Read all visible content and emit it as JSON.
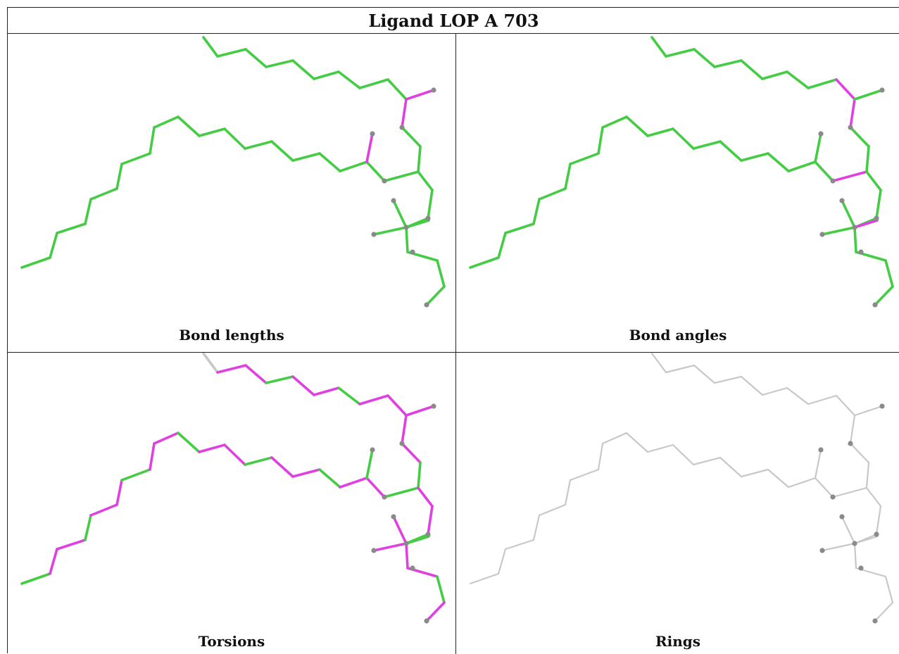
{
  "title": "Ligand LOP A 703",
  "colors": {
    "good": "#44cc44",
    "outlier": "#e040e0",
    "neutral": "#c8c8c8",
    "atom": "#8a8a8a"
  },
  "panels": [
    {
      "caption": "Bond lengths",
      "mode": "bonds"
    },
    {
      "caption": "Bond angles",
      "mode": "angles"
    },
    {
      "caption": "Torsions",
      "mode": "torsions"
    },
    {
      "caption": "Rings",
      "mode": "rings"
    }
  ]
}
